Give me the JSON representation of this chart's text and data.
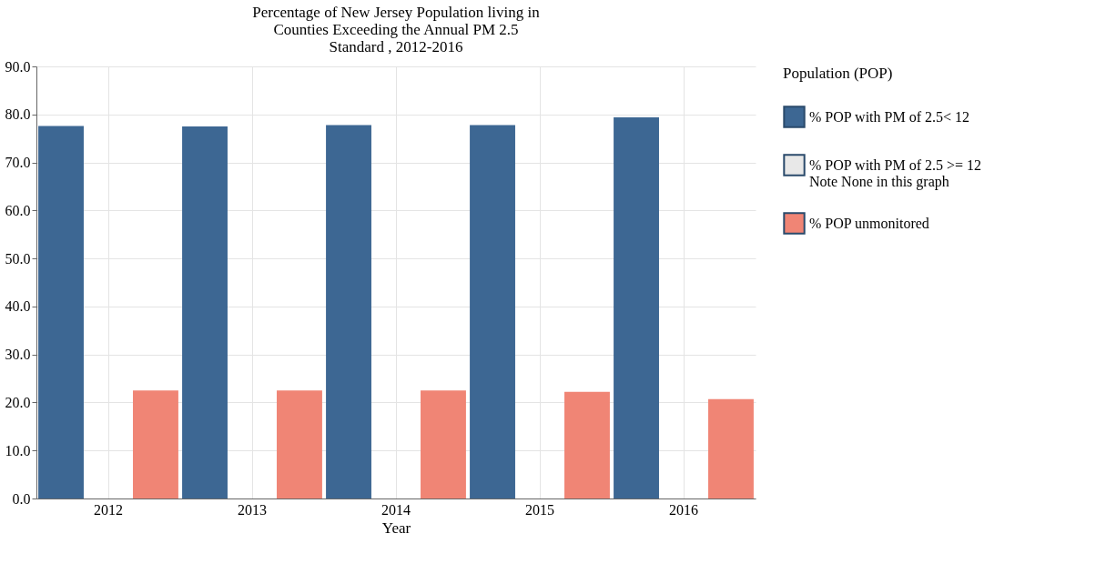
{
  "chart_data": {
    "type": "bar",
    "title": "Percentage of New Jersey Population living in\nCounties Exceeding the Annual PM 2.5\nStandard , 2012-2016",
    "xlabel": "Year",
    "legend_title": "Population (POP)",
    "categories": [
      "2012",
      "2013",
      "2014",
      "2015",
      "2016"
    ],
    "series": [
      {
        "name": "% POP with PM of 2.5< 12",
        "color": "#3d6793",
        "values": [
          77.6,
          77.5,
          77.8,
          77.8,
          79.4
        ]
      },
      {
        "name": "% POP with PM of 2.5 >= 12\nNote None in this graph",
        "color": "#e8e8e8",
        "values": [
          0,
          0,
          0,
          0,
          0
        ]
      },
      {
        "name": "% POP unmonitored",
        "color": "#f08575",
        "values": [
          22.5,
          22.5,
          22.5,
          22.2,
          20.7
        ]
      }
    ],
    "ylim": [
      0,
      90
    ],
    "yticks": [
      {
        "value": 0,
        "label": "0.0"
      },
      {
        "value": 10,
        "label": "10.0"
      },
      {
        "value": 20,
        "label": "20.0"
      },
      {
        "value": 30,
        "label": "30.0"
      },
      {
        "value": 40,
        "label": "40.0"
      },
      {
        "value": 50,
        "label": "50.0"
      },
      {
        "value": 60,
        "label": "60.0"
      },
      {
        "value": 70,
        "label": "70.0"
      },
      {
        "value": 80,
        "label": "80.0"
      },
      {
        "value": 90,
        "label": "90.0"
      }
    ],
    "grid": true,
    "legend": "right"
  }
}
